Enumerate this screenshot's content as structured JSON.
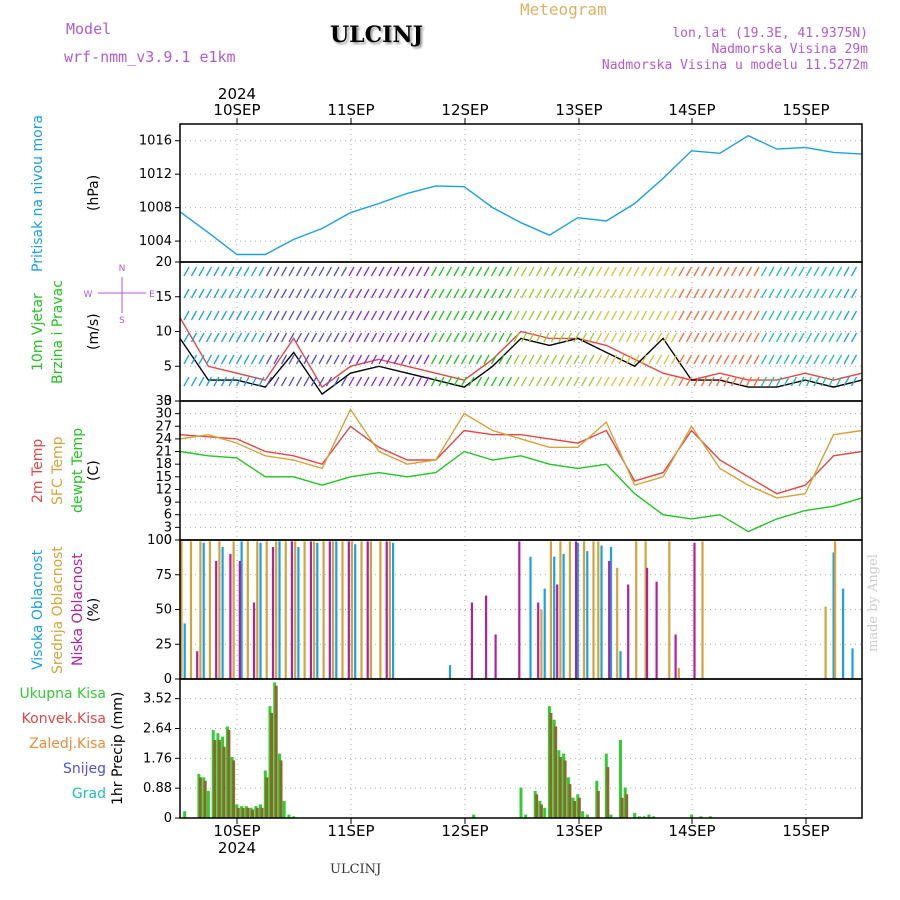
{
  "header": {
    "model_label": "Model",
    "model_name": "wrf-nmm_v3.9.1 e1km",
    "station": "ULCINJ",
    "meteogram": "Meteogram",
    "lonlat": "lon,lat (19.3E, 41.9375N)",
    "altitude": "Nadmorska Visina 29m",
    "model_altitude": "Nadmorska Visina u modelu 11.5272m"
  },
  "footer": {
    "station": "ULCINJ",
    "credit": "made by Angel"
  },
  "colors": {
    "pressure": "#1aa0e6",
    "t2m": "#e64646",
    "sfc": "#d6a23a",
    "dewpt": "#22c422",
    "high": "#1aa0e6",
    "mid": "#d6a23a",
    "low": "#b020a0",
    "total_precip": "#33cc33",
    "conv_precip": "#8a6a2a"
  },
  "axis": {
    "year_top": "2024",
    "year_bottom": "2024",
    "days": [
      "10SEP",
      "11SEP",
      "12SEP",
      "13SEP",
      "14SEP",
      "15SEP"
    ]
  },
  "chart_data": [
    {
      "type": "line",
      "title": "",
      "ylabel_lines": [
        "Pritisak na nivou mora"
      ],
      "unit": "(hPa)",
      "ylim": [
        1001.5,
        1018
      ],
      "yticks": [
        1004,
        1008,
        1012,
        1016
      ],
      "xlim": [
        0,
        144
      ],
      "series": [
        {
          "name": "",
          "color": "#1aa0e6",
          "x": [
            0,
            6,
            12,
            18,
            24,
            30,
            36,
            42,
            48,
            54,
            60,
            66,
            72,
            78,
            84,
            90,
            96,
            102,
            108,
            114,
            120,
            126,
            132,
            138,
            144
          ],
          "y": [
            1007.5,
            1005,
            1002.4,
            1002.4,
            1004.2,
            1005.5,
            1007.4,
            1008.5,
            1009.7,
            1010.6,
            1010.5,
            1008,
            1006.2,
            1004.7,
            1006.8,
            1006.4,
            1008.5,
            1011.5,
            1014.8,
            1014.5,
            1016.6,
            1015,
            1015.2,
            1014.6,
            1014.4
          ]
        }
      ]
    },
    {
      "type": "line",
      "title": "",
      "ylabel_lines": [
        "10m Vjetar",
        "Brzina i Pravac"
      ],
      "unit": "(m/s)",
      "compass": {
        "n": "N",
        "s": "S",
        "e": "E",
        "w": "W"
      },
      "ylim": [
        0,
        20
      ],
      "yticks": [
        0,
        5,
        10,
        15,
        20
      ],
      "xlim": [
        0,
        144
      ],
      "series": [
        {
          "name": "",
          "color": "#e64646",
          "x": [
            0,
            6,
            12,
            18,
            24,
            30,
            36,
            42,
            48,
            54,
            60,
            66,
            72,
            78,
            84,
            90,
            96,
            102,
            108,
            114,
            120,
            126,
            132,
            138,
            144
          ],
          "y": [
            12,
            5,
            4,
            3,
            9,
            2,
            5,
            6,
            5,
            4,
            3,
            6,
            10,
            9,
            9,
            8,
            6,
            4,
            3,
            4,
            3,
            3,
            4,
            3,
            4
          ]
        },
        {
          "name": "",
          "color": "#000000",
          "x": [
            0,
            6,
            12,
            18,
            24,
            30,
            36,
            42,
            48,
            54,
            60,
            66,
            72,
            78,
            84,
            90,
            96,
            102,
            108,
            114,
            120,
            126,
            132,
            138,
            144
          ],
          "y": [
            9,
            3,
            3,
            2,
            7,
            1,
            4,
            5,
            4,
            3,
            2,
            5,
            9,
            8,
            9,
            7,
            5,
            9,
            3,
            3,
            2,
            2,
            3,
            2,
            3
          ]
        }
      ]
    },
    {
      "type": "line",
      "title": "",
      "ylabel_lines": [
        "2m Temp",
        "SFC Temp",
        "dewpt Temp"
      ],
      "unit": "(C)",
      "ylim": [
        0,
        33
      ],
      "yticks": [
        0,
        3,
        6,
        9,
        12,
        15,
        18,
        21,
        24,
        27,
        30,
        33
      ],
      "xlim": [
        0,
        144
      ],
      "series": [
        {
          "name": "2m Temp",
          "color": "#e64646",
          "x": [
            0,
            6,
            12,
            18,
            24,
            30,
            36,
            42,
            48,
            54,
            60,
            66,
            72,
            78,
            84,
            90,
            96,
            102,
            108,
            114,
            120,
            126,
            132,
            138,
            144
          ],
          "y": [
            25,
            24.5,
            24,
            21,
            20,
            18,
            27,
            22,
            19,
            19,
            26,
            25,
            25,
            24,
            23,
            26,
            14,
            16,
            26,
            19,
            15,
            11,
            13,
            20,
            21
          ]
        },
        {
          "name": "SFC Temp",
          "color": "#d6a23a",
          "x": [
            0,
            6,
            12,
            18,
            24,
            30,
            36,
            42,
            48,
            54,
            60,
            66,
            72,
            78,
            84,
            90,
            96,
            102,
            108,
            114,
            120,
            126,
            132,
            138,
            144
          ],
          "y": [
            24,
            25,
            23,
            20,
            19,
            17,
            31,
            21,
            18,
            19,
            30,
            26,
            24,
            22,
            22,
            28,
            13,
            15,
            27,
            17,
            13,
            10,
            11,
            25,
            26
          ]
        },
        {
          "name": "dewpt Temp",
          "color": "#22c422",
          "x": [
            0,
            6,
            12,
            18,
            24,
            30,
            36,
            42,
            48,
            54,
            60,
            66,
            72,
            78,
            84,
            90,
            96,
            102,
            108,
            114,
            120,
            126,
            132,
            138,
            144
          ],
          "y": [
            21,
            20,
            19.5,
            15,
            15,
            13,
            15,
            16,
            15,
            16,
            21,
            19,
            20,
            18,
            17,
            18,
            11,
            6,
            5,
            6,
            2,
            5,
            7,
            8,
            10
          ]
        }
      ]
    },
    {
      "type": "bar",
      "title": "",
      "ylabel_lines": [
        "Visoka Oblacnost",
        "Srednja Oblacnost",
        "Niska Oblacnost"
      ],
      "unit": "(%)",
      "ylim": [
        0,
        100
      ],
      "yticks": [
        0,
        25,
        50,
        75,
        100
      ],
      "xlim": [
        0,
        144
      ],
      "series": [
        {
          "name": "Visoka Oblacnost",
          "color": "#1aa0e6",
          "x": [
            1,
            5,
            9,
            13,
            17,
            21,
            25,
            29,
            33,
            37,
            45,
            57,
            74,
            77,
            79,
            81,
            84,
            86,
            89,
            91,
            93,
            138,
            140,
            142
          ],
          "y": [
            40,
            98,
            95,
            99,
            98,
            99,
            95,
            98,
            99,
            97,
            98,
            10,
            88,
            65,
            88,
            90,
            98,
            92,
            96,
            95,
            20,
            91,
            65,
            22
          ]
        },
        {
          "name": "Srednja Oblacnost",
          "color": "#d6a23a",
          "x": [
            0,
            2,
            4,
            6,
            8,
            11,
            14,
            16,
            18,
            20,
            22,
            24,
            26,
            28,
            30,
            32,
            34,
            36,
            38,
            40,
            42,
            44,
            76,
            78,
            80,
            82,
            85,
            87,
            88,
            92,
            96,
            98,
            103,
            105,
            110,
            136,
            138
          ],
          "y": [
            99,
            99,
            99,
            99,
            99,
            99,
            99,
            99,
            99,
            99,
            99,
            99,
            99,
            99,
            99,
            99,
            99,
            99,
            99,
            99,
            99,
            99,
            50,
            99,
            99,
            99,
            99,
            99,
            99,
            80,
            99,
            99,
            99,
            8,
            99,
            52,
            99
          ]
        },
        {
          "name": "Niska Oblacnost",
          "color": "#b020a0",
          "x": [
            3,
            7,
            10,
            12,
            15,
            19,
            23,
            27,
            31,
            35,
            39,
            43,
            61,
            64,
            66,
            71,
            75,
            79,
            83,
            90,
            94,
            98,
            100,
            104,
            108
          ],
          "y": [
            20,
            85,
            90,
            85,
            55,
            95,
            99,
            99,
            99,
            99,
            99,
            99,
            55,
            60,
            32,
            99,
            55,
            68,
            99,
            85,
            68,
            80,
            70,
            32,
            98
          ]
        }
      ]
    },
    {
      "type": "bar",
      "title": "",
      "ylabel_lines": [
        "Ukupna Kisa",
        "Konvek.Kisa",
        "Zaledj.Kisa",
        "Snijeg",
        "Grad"
      ],
      "ylabel_colors": [
        "#33cc33",
        "#e64646",
        "#f08a3a",
        "#5050e0",
        "#20c0b0"
      ],
      "unit": "1hr Precip (mm)",
      "ylim": [
        0,
        4.1
      ],
      "yticks": [
        0,
        0.88,
        1.76,
        2.64,
        3.52
      ],
      "ytick_labels": [
        "0",
        "0.88",
        "1.76",
        "2.64",
        "3.52"
      ],
      "xlim": [
        0,
        144
      ],
      "series": [
        {
          "name": "Ukupna Kisa",
          "color": "#33cc33",
          "x": [
            1,
            4,
            5,
            6,
            7,
            8,
            9,
            10,
            11,
            12,
            13,
            14,
            15,
            16,
            17,
            18,
            19,
            20,
            21,
            22,
            23,
            24,
            62,
            72,
            73,
            75,
            76,
            77,
            78,
            79,
            80,
            81,
            82,
            83,
            84,
            85,
            86,
            88,
            90,
            91,
            93,
            94,
            96,
            97,
            98,
            99,
            100,
            108,
            110,
            112
          ],
          "y": [
            0.2,
            1.3,
            1.2,
            0.8,
            2.6,
            2.5,
            2.4,
            2.7,
            1.8,
            0.4,
            0.35,
            0.35,
            0.3,
            0.35,
            0.4,
            1.4,
            3.3,
            4.0,
            1.9,
            0.5,
            0.1,
            0.05,
            0.1,
            0.9,
            0.1,
            0.8,
            0.5,
            0.3,
            3.3,
            2.9,
            2.0,
            1.9,
            1.2,
            0.6,
            0.7,
            0.2,
            0.1,
            1.1,
            1.9,
            0.1,
            2.3,
            0.9,
            0.15,
            0.05,
            0.05,
            0.1,
            0.05,
            0.1,
            0.05,
            0.05
          ]
        },
        {
          "name": "Konvek.Kisa",
          "color": "#8a6a2a",
          "x": [
            4,
            5,
            7,
            8,
            9,
            10,
            11,
            12,
            13,
            14,
            15,
            16,
            17,
            18,
            19,
            20,
            21,
            75,
            76,
            78,
            79,
            80,
            81,
            82,
            83,
            84,
            88,
            90,
            93,
            94
          ],
          "y": [
            1.2,
            1.1,
            2.3,
            2.3,
            2.1,
            2.6,
            1.7,
            0.3,
            0.3,
            0.3,
            0.25,
            0.3,
            0.3,
            1.2,
            3.1,
            3.9,
            1.7,
            0.7,
            0.4,
            3.1,
            2.7,
            1.8,
            1.7,
            1.0,
            0.5,
            0.6,
            0.8,
            1.5,
            0.6,
            0.7
          ]
        }
      ]
    }
  ]
}
